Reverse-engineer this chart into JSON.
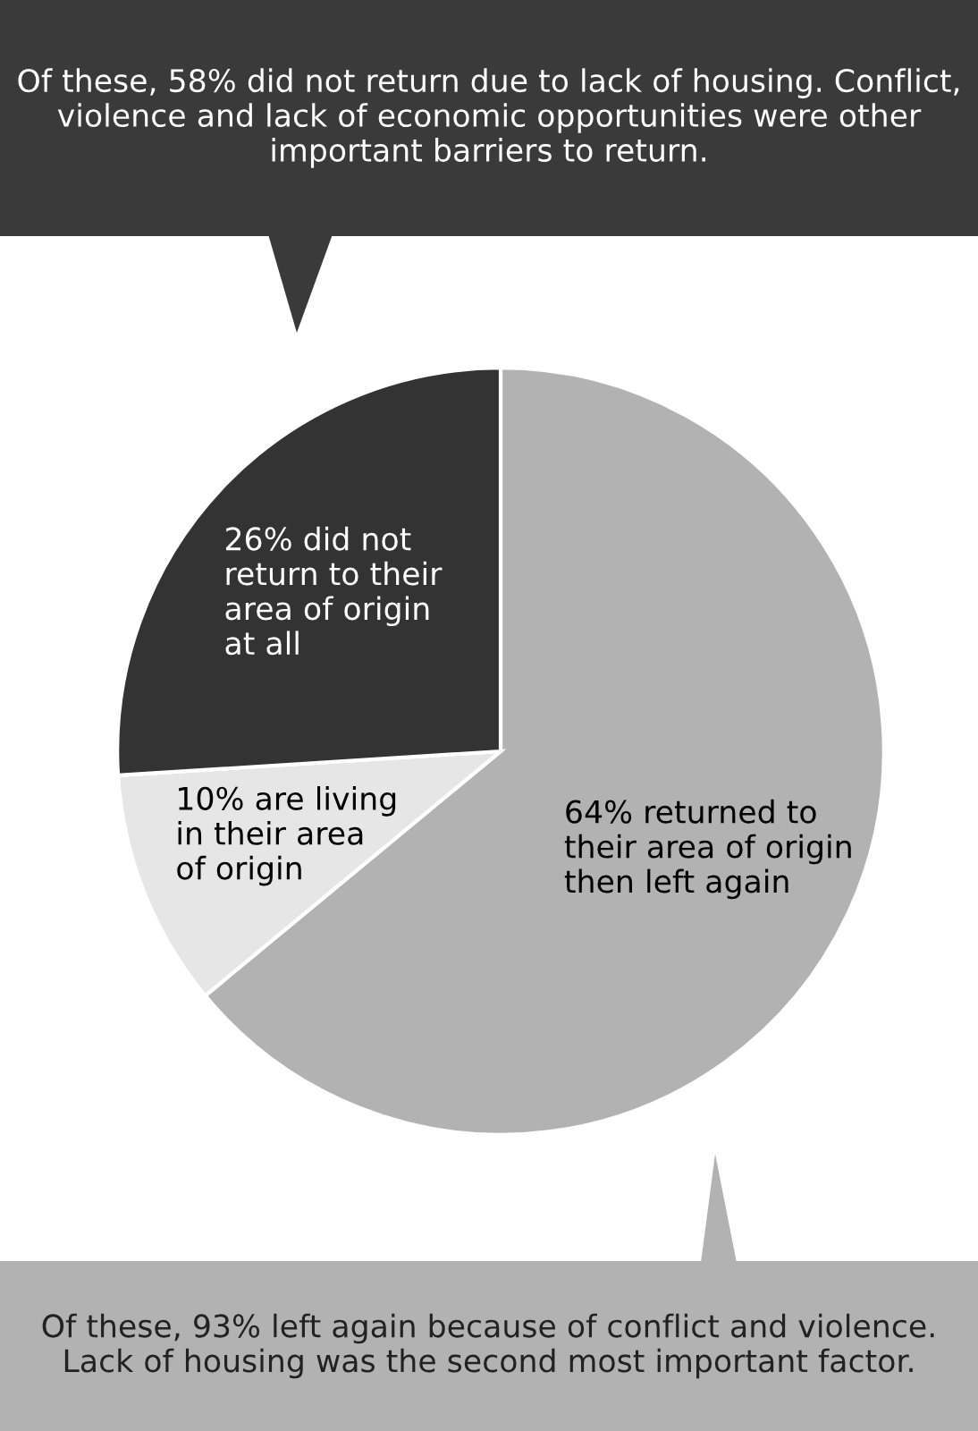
{
  "chart_data": {
    "type": "pie",
    "categories": [
      "64% returned to\ntheir area of origin\nthen left again",
      "10% are living\nin their area\nof origin",
      "26% did not\nreturn to their\narea of origin\nat all"
    ],
    "values": [
      64,
      10,
      26
    ],
    "colors": [
      "#b2b2b2",
      "#e6e6e6",
      "#333333"
    ],
    "annotations": [
      "Of these, 58% did not return due to lack of housing. Conflict, violence and lack of economic opportunities were other important barriers to return.",
      "Of these, 93% left again because of conflict and violence. Lack of housing was the second most important factor."
    ]
  }
}
